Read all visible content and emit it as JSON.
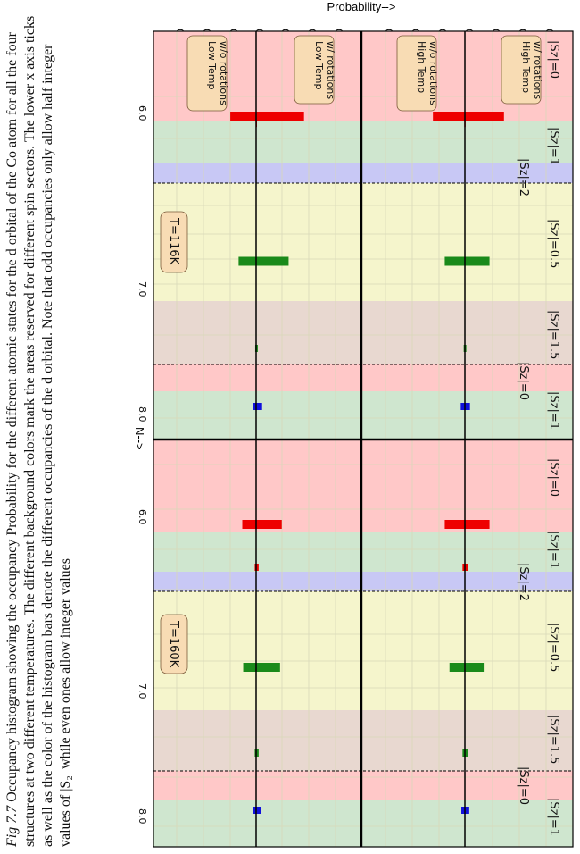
{
  "figure": {
    "y_axis_label": "Probability-->",
    "x_axis_label": "N-->",
    "y_ticks": [
      "0.3",
      "0.2",
      "0.1",
      "0.0",
      "0.1",
      "0.2",
      "0.3"
    ],
    "x_ticks": [
      "6.0",
      "7.0",
      "8.0"
    ],
    "panel_labels": {
      "upper": "High Temp\nw/ rotations",
      "lower": "Low Temp\nw/ rotations"
    },
    "panel_labels_right": {
      "upper": "High Temp\nw/o rotations",
      "lower": "Low Temp\nw/o rotations"
    },
    "temperature_labels": [
      "T=116K",
      "T=160K"
    ],
    "sector_labels": [
      "|Sz|=0",
      "|Sz|=1",
      "|Sz|=2",
      "|Sz|=0.5",
      "|Sz|=1.5",
      "|Sz|=0",
      "|Sz|=1"
    ],
    "colors": {
      "sz0_bg": "#ffc8c8",
      "sz1_bg": "#cfe6cf",
      "sz2_bg": "#c8c8f5",
      "sz05_bg": "#f5f5cc",
      "sz15_bg": "#e8d8d0",
      "bar_even_n6": "#ee0000",
      "bar_odd": "#1a8a1a",
      "bar_n8": "#1010dd",
      "label_box": "#f8dcb4"
    }
  },
  "chart_data": [
    {
      "type": "bar",
      "title": "",
      "xlabel": "N-->",
      "ylabel": "Probability-->",
      "temperature": "T=116K",
      "xlim": [
        5.6,
        8.2
      ],
      "series": [
        {
          "name": "High Temp w/ rotations",
          "x": [
            6.0,
            6.05,
            7.0,
            7.6,
            8.0
          ],
          "values": [
            0.27,
            0.005,
            0.17,
            0.01,
            0.035
          ]
        },
        {
          "name": "Low Temp w/ rotations",
          "x": [
            6.0,
            6.05,
            7.0,
            7.6,
            8.0
          ],
          "values": [
            0.28,
            0.005,
            0.19,
            0.01,
            0.035
          ]
        }
      ]
    },
    {
      "type": "bar",
      "title": "",
      "xlabel": "N-->",
      "ylabel": "Probability-->",
      "temperature": "T=160K",
      "xlim": [
        5.6,
        8.2
      ],
      "series": [
        {
          "name": "High Temp w/ rotations",
          "x": [
            6.0,
            6.3,
            7.0,
            7.6,
            8.0
          ],
          "values": [
            0.17,
            0.02,
            0.13,
            0.02,
            0.03
          ]
        },
        {
          "name": "Low Temp w/ rotations",
          "x": [
            6.0,
            6.3,
            7.0,
            7.6,
            8.0
          ],
          "values": [
            0.15,
            0.015,
            0.14,
            0.015,
            0.03
          ]
        }
      ]
    }
  ],
  "caption": {
    "lead": "Fig 7.7",
    "text": "Occupancy histogram showing the occupancy Probability for the different atomic states for the d orbital of the Co atom for all the four structures at two different temperatures. The different background colors mark the areas reserved for different spin sectors. The lower x axis ticks as well as the color of the histogram bars denote the different occupancies of the d orbital. Note that odd occupancies only allow half integer values of |S₂| while even ones allow integer values"
  }
}
